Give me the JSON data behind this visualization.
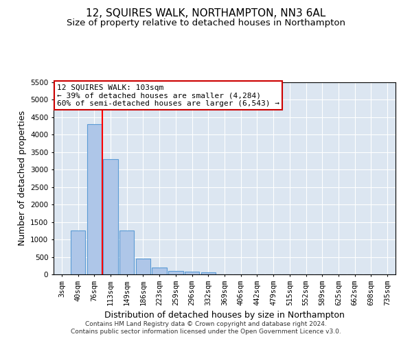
{
  "title": "12, SQUIRES WALK, NORTHAMPTON, NN3 6AL",
  "subtitle": "Size of property relative to detached houses in Northampton",
  "xlabel": "Distribution of detached houses by size in Northampton",
  "ylabel": "Number of detached properties",
  "annotation_line1": "12 SQUIRES WALK: 103sqm",
  "annotation_line2": "← 39% of detached houses are smaller (4,284)",
  "annotation_line3": "60% of semi-detached houses are larger (6,543) →",
  "footer1": "Contains HM Land Registry data © Crown copyright and database right 2024.",
  "footer2": "Contains public sector information licensed under the Open Government Licence v3.0.",
  "categories": [
    "3sqm",
    "40sqm",
    "76sqm",
    "113sqm",
    "149sqm",
    "186sqm",
    "223sqm",
    "259sqm",
    "296sqm",
    "332sqm",
    "369sqm",
    "406sqm",
    "442sqm",
    "479sqm",
    "515sqm",
    "552sqm",
    "589sqm",
    "625sqm",
    "662sqm",
    "698sqm",
    "735sqm"
  ],
  "values": [
    0,
    1250,
    4300,
    3300,
    1250,
    450,
    200,
    100,
    75,
    50,
    0,
    0,
    0,
    0,
    0,
    0,
    0,
    0,
    0,
    0,
    0
  ],
  "bar_color": "#aec6e8",
  "bar_edgecolor": "#5b9bd5",
  "red_line_x": 2.5,
  "ylim": [
    0,
    5500
  ],
  "yticks": [
    0,
    500,
    1000,
    1500,
    2000,
    2500,
    3000,
    3500,
    4000,
    4500,
    5000,
    5500
  ],
  "background_color": "#dce6f1",
  "grid_color": "#ffffff",
  "annotation_box_color": "#ffffff",
  "annotation_box_edgecolor": "#cc0000",
  "title_fontsize": 11,
  "subtitle_fontsize": 9.5,
  "axis_label_fontsize": 9,
  "tick_fontsize": 7.5,
  "annotation_fontsize": 8,
  "footer_fontsize": 6.5
}
